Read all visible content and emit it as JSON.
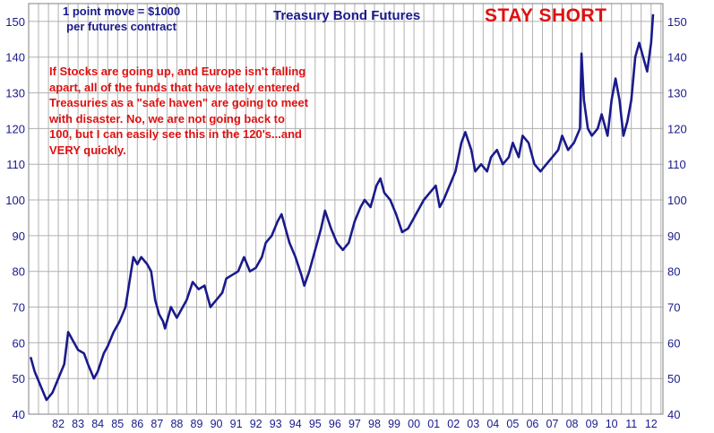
{
  "header": {
    "title": "Treasury Bond Futures",
    "point_note_line1": "1 point move = $1000",
    "point_note_line2": "per futures contract",
    "stay_short": "STAY SHORT"
  },
  "commentary": {
    "lines": [
      "If Stocks are going up, and Europe isn't falling",
      "apart, all of the funds that have lately entered",
      "Treasuries as a \"safe haven\" are going to meet",
      "with disaster. No, we are not going back to",
      "100, but I can easily see this in the 120's...and",
      "VERY quickly."
    ]
  },
  "colors": {
    "line": "#1a1a8c",
    "grid": "#b0b0b0",
    "axis_text": "#1a1a8c",
    "accent_red": "#e01010"
  },
  "chart_data": {
    "type": "line",
    "title": "Treasury Bond Futures",
    "xlabel": "",
    "ylabel": "",
    "grid": true,
    "legend": "none",
    "ylim": [
      40,
      155
    ],
    "xlim": [
      1981.0,
      2013.1
    ],
    "yticks": [
      40,
      50,
      60,
      70,
      80,
      90,
      100,
      110,
      120,
      130,
      140,
      150
    ],
    "xtick_labels": [
      "82",
      "83",
      "84",
      "85",
      "86",
      "87",
      "88",
      "89",
      "90",
      "91",
      "92",
      "93",
      "94",
      "95",
      "96",
      "97",
      "98",
      "99",
      "00",
      "01",
      "02",
      "03",
      "04",
      "05",
      "06",
      "07",
      "08",
      "09",
      "10",
      "11",
      "12"
    ],
    "xtick_years": [
      1982,
      1983,
      1984,
      1985,
      1986,
      1987,
      1988,
      1989,
      1990,
      1991,
      1992,
      1993,
      1994,
      1995,
      1996,
      1997,
      1998,
      1999,
      2000,
      2001,
      2002,
      2003,
      2004,
      2005,
      2006,
      2007,
      2008,
      2009,
      2010,
      2011,
      2012
    ],
    "series": [
      {
        "name": "",
        "x": [
          1981.1,
          1981.3,
          1981.6,
          1981.9,
          1982.2,
          1982.5,
          1982.8,
          1983.0,
          1983.2,
          1983.5,
          1983.8,
          1984.0,
          1984.3,
          1984.5,
          1984.8,
          1985.0,
          1985.3,
          1985.6,
          1985.9,
          1986.1,
          1986.3,
          1986.5,
          1986.7,
          1987.0,
          1987.2,
          1987.4,
          1987.6,
          1987.8,
          1987.9,
          1988.2,
          1988.5,
          1988.8,
          1989.0,
          1989.3,
          1989.6,
          1989.9,
          1990.2,
          1990.5,
          1990.8,
          1991.0,
          1991.3,
          1991.6,
          1991.9,
          1992.2,
          1992.5,
          1992.8,
          1993.0,
          1993.3,
          1993.6,
          1993.8,
          1994.0,
          1994.2,
          1994.5,
          1994.8,
          1994.95,
          1995.2,
          1995.5,
          1995.8,
          1996.0,
          1996.3,
          1996.6,
          1996.9,
          1997.2,
          1997.5,
          1997.8,
          1998.0,
          1998.3,
          1998.6,
          1998.8,
          1999.0,
          1999.3,
          1999.6,
          1999.9,
          2000.2,
          2000.5,
          2000.8,
          2001.0,
          2001.3,
          2001.6,
          2001.8,
          2002.0,
          2002.3,
          2002.6,
          2002.9,
          2003.1,
          2003.4,
          2003.6,
          2003.9,
          2004.2,
          2004.4,
          2004.7,
          2005.0,
          2005.3,
          2005.5,
          2005.8,
          2006.0,
          2006.3,
          2006.6,
          2006.9,
          2007.2,
          2007.5,
          2007.8,
          2008.0,
          2008.3,
          2008.6,
          2008.9,
          2008.98,
          2009.1,
          2009.3,
          2009.5,
          2009.8,
          2010.0,
          2010.3,
          2010.5,
          2010.7,
          2010.9,
          2011.1,
          2011.3,
          2011.5,
          2011.7,
          2011.9,
          2012.1,
          2012.3,
          2012.5,
          2012.6
        ],
        "values": [
          56,
          52,
          48,
          44,
          46,
          50,
          54,
          63,
          61,
          58,
          57,
          54,
          50,
          52,
          57,
          59,
          63,
          66,
          70,
          77,
          84,
          82,
          84,
          82,
          80,
          72,
          68,
          66,
          64,
          70,
          67,
          70,
          72,
          77,
          75,
          76,
          70,
          72,
          74,
          78,
          79,
          80,
          84,
          80,
          81,
          84,
          88,
          90,
          94,
          96,
          92,
          88,
          84,
          79,
          76,
          80,
          86,
          92,
          97,
          92,
          88,
          86,
          88,
          94,
          98,
          100,
          98,
          104,
          106,
          102,
          100,
          96,
          91,
          92,
          95,
          98,
          100,
          102,
          104,
          98,
          100,
          104,
          108,
          116,
          119,
          114,
          108,
          110,
          108,
          112,
          114,
          110,
          112,
          116,
          112,
          118,
          116,
          110,
          108,
          110,
          112,
          114,
          118,
          114,
          116,
          120,
          141,
          128,
          120,
          118,
          120,
          124,
          118,
          128,
          134,
          128,
          118,
          122,
          128,
          140,
          144,
          140,
          136,
          144,
          152
        ]
      }
    ]
  }
}
